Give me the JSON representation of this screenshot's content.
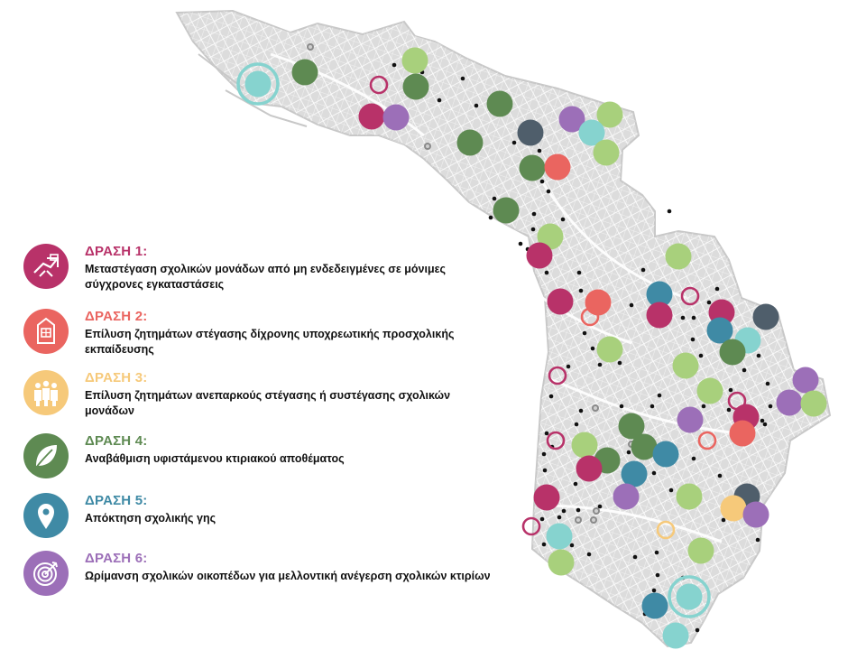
{
  "colors": {
    "action1": "#b83269",
    "action2": "#ea6560",
    "action3": "#f6c97a",
    "action4": "#5e8a52",
    "action5": "#3f8aa5",
    "action6": "#9c6fb8",
    "light_green": "#a8d07c",
    "light_teal": "#86d3cf",
    "slate": "#4f5e6b",
    "street_fill": "#d9d9d9",
    "street_line": "#b5b5b5"
  },
  "legend": [
    {
      "id": "action1",
      "icon": "house-moving-icon",
      "title": "ΔΡΑΣΗ 1:",
      "description": "Μεταστέγαση σχολικών μονάδων από μη ενδεδειγμένες σε μόνιμες σύγχρονες εγκαταστάσεις"
    },
    {
      "id": "action2",
      "icon": "kindergarten-building-icon",
      "title": "ΔΡΑΣΗ 2:",
      "description": "Επίλυση ζητημάτων στέγασης δίχρονης υποχρεωτικής προσχολικής εκπαίδευσης"
    },
    {
      "id": "action3",
      "icon": "people-group-icon",
      "title": "ΔΡΑΣΗ 3:",
      "description": "Επίλυση ζητημάτων ανεπαρκούς στέγασης ή συστέγασης σχολικών μονάδων"
    },
    {
      "id": "action4",
      "icon": "leaf-icon",
      "title": "ΔΡΑΣΗ 4:",
      "description": "Αναβάθμιση υφιστάμενου κτιριακού αποθέματος"
    },
    {
      "id": "action5",
      "icon": "location-pin-icon",
      "title": "ΔΡΑΣΗ 5:",
      "description": "Απόκτηση σχολικής γης"
    },
    {
      "id": "action6",
      "icon": "target-arrow-icon",
      "title": "ΔΡΑΣΗ 6:",
      "description": "Ωρίμανση σχολικών οικοπέδων για μελλοντική ανέγερση σχολικών κτιρίων"
    }
  ],
  "map": {
    "filled_markers": [
      [
        "action4",
        338,
        80
      ],
      [
        "light_green",
        460,
        67
      ],
      [
        "action4",
        461,
        96
      ],
      [
        "action1",
        412,
        129
      ],
      [
        "action6",
        439,
        130
      ],
      [
        "action4",
        554,
        115
      ],
      [
        "slate",
        588,
        147
      ],
      [
        "action6",
        634,
        132
      ],
      [
        "light_green",
        676,
        127
      ],
      [
        "light_teal",
        656,
        147
      ],
      [
        "action4",
        521,
        158
      ],
      [
        "light_green",
        672,
        169
      ],
      [
        "action4",
        590,
        186
      ],
      [
        "action2",
        618,
        185
      ],
      [
        "action4",
        561,
        233
      ],
      [
        "light_green",
        610,
        262
      ],
      [
        "action1",
        598,
        283
      ],
      [
        "light_green",
        752,
        284
      ],
      [
        "action1",
        621,
        334
      ],
      [
        "action2",
        663,
        335
      ],
      [
        "action5",
        731,
        326
      ],
      [
        "action1",
        731,
        349
      ],
      [
        "action1",
        800,
        346
      ],
      [
        "slate",
        849,
        351
      ],
      [
        "action5",
        798,
        366
      ],
      [
        "light_teal",
        829,
        377
      ],
      [
        "action4",
        812,
        390
      ],
      [
        "light_green",
        676,
        387
      ],
      [
        "light_green",
        760,
        405
      ],
      [
        "action6",
        893,
        421
      ],
      [
        "action6",
        875,
        446
      ],
      [
        "light_green",
        902,
        447
      ],
      [
        "light_green",
        787,
        433
      ],
      [
        "action1",
        827,
        462
      ],
      [
        "action2",
        823,
        480
      ],
      [
        "action6",
        765,
        465
      ],
      [
        "action4",
        700,
        472
      ],
      [
        "action4",
        714,
        495
      ],
      [
        "action5",
        738,
        503
      ],
      [
        "light_green",
        648,
        493
      ],
      [
        "action4",
        673,
        510
      ],
      [
        "action1",
        653,
        519
      ],
      [
        "action5",
        703,
        525
      ],
      [
        "action6",
        694,
        550
      ],
      [
        "light_green",
        764,
        550
      ],
      [
        "action1",
        606,
        551
      ],
      [
        "slate",
        828,
        550
      ],
      [
        "action3",
        813,
        563
      ],
      [
        "action6",
        838,
        570
      ],
      [
        "light_teal",
        620,
        594
      ],
      [
        "light_green",
        777,
        610
      ],
      [
        "light_green",
        622,
        623
      ],
      [
        "action5",
        726,
        671
      ],
      [
        "light_teal",
        749,
        704
      ]
    ],
    "ring_markers": [
      [
        "action1",
        420,
        94
      ],
      [
        "action1",
        765,
        328
      ],
      [
        "action2",
        654,
        351
      ],
      [
        "action1",
        618,
        416
      ],
      [
        "action1",
        817,
        444
      ],
      [
        "action2",
        784,
        488
      ],
      [
        "action1",
        616,
        488
      ],
      [
        "action1",
        589,
        583
      ],
      [
        "action3",
        738,
        587
      ]
    ],
    "double_ring_markers": [
      [
        "light_teal",
        286,
        93
      ],
      [
        "light_teal",
        764,
        661
      ]
    ],
    "black_dots": [
      [
        437,
        72
      ],
      [
        468,
        80
      ],
      [
        513,
        87
      ],
      [
        487,
        111
      ],
      [
        528,
        117
      ],
      [
        578,
        148
      ],
      [
        570,
        158
      ],
      [
        598,
        167
      ],
      [
        601,
        201
      ],
      [
        608,
        212
      ],
      [
        548,
        220
      ],
      [
        544,
        241
      ],
      [
        592,
        237
      ],
      [
        591,
        254
      ],
      [
        577,
        270
      ],
      [
        585,
        276
      ],
      [
        624,
        243
      ],
      [
        606,
        302
      ],
      [
        642,
        302
      ],
      [
        713,
        299
      ],
      [
        742,
        234
      ],
      [
        644,
        322
      ],
      [
        700,
        338
      ],
      [
        757,
        352
      ],
      [
        769,
        352
      ],
      [
        768,
        376
      ],
      [
        795,
        320
      ],
      [
        786,
        335
      ],
      [
        777,
        394
      ],
      [
        841,
        394
      ],
      [
        825,
        410
      ],
      [
        851,
        425
      ],
      [
        854,
        450
      ],
      [
        845,
        466
      ],
      [
        848,
        470
      ],
      [
        810,
        432
      ],
      [
        808,
        454
      ],
      [
        780,
        450
      ],
      [
        731,
        438
      ],
      [
        723,
        450
      ],
      [
        687,
        402
      ],
      [
        648,
        369
      ],
      [
        657,
        386
      ],
      [
        665,
        404
      ],
      [
        630,
        406
      ],
      [
        611,
        439
      ],
      [
        644,
        455
      ],
      [
        639,
        470
      ],
      [
        606,
        480
      ],
      [
        612,
        495
      ],
      [
        603,
        503
      ],
      [
        604,
        521
      ],
      [
        643,
        526
      ],
      [
        697,
        501
      ],
      [
        725,
        524
      ],
      [
        665,
        561
      ],
      [
        625,
        566
      ],
      [
        620,
        573
      ],
      [
        641,
        565
      ],
      [
        601,
        575
      ],
      [
        603,
        603
      ],
      [
        634,
        604
      ],
      [
        653,
        614
      ],
      [
        704,
        617
      ],
      [
        728,
        612
      ],
      [
        729,
        637
      ],
      [
        725,
        654
      ],
      [
        715,
        680
      ],
      [
        773,
        698
      ],
      [
        757,
        640
      ],
      [
        744,
        543
      ],
      [
        769,
        508
      ],
      [
        798,
        527
      ],
      [
        802,
        576
      ],
      [
        840,
        598
      ],
      [
        734,
        495
      ],
      [
        698,
        460
      ],
      [
        689,
        450
      ],
      [
        638,
        536
      ]
    ],
    "grey_targets": [
      [
        344,
        52
      ],
      [
        474,
        162
      ],
      [
        660,
        452
      ],
      [
        641,
        576
      ],
      [
        658,
        576
      ],
      [
        661,
        566
      ],
      [
        700,
        492
      ]
    ]
  }
}
